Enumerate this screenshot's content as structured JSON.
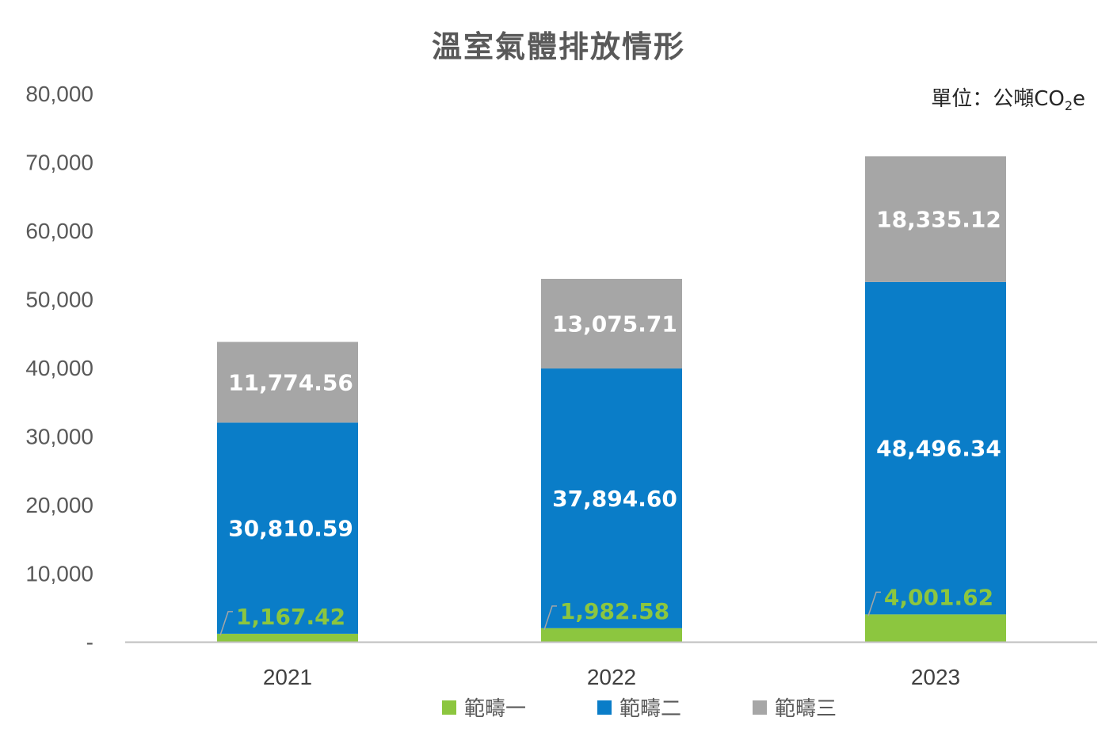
{
  "unit": {
    "prefix": "單位：公噸CO",
    "sub": "2",
    "suffix": "e"
  },
  "colors": {
    "scope1": "#8cc63f",
    "scope2": "#0a7dc8",
    "scope3": "#a6a6a6",
    "axis": "#bfbfbf"
  },
  "chart_data": {
    "type": "bar",
    "stacked": true,
    "title": "溫室氣體排放情形",
    "categories": [
      "2021",
      "2022",
      "2023"
    ],
    "series": [
      {
        "name": "範疇一",
        "values": [
          1167.42,
          1982.58,
          4001.62
        ],
        "labels": [
          "1,167.42",
          "1,982.58",
          "4,001.62"
        ]
      },
      {
        "name": "範疇二",
        "values": [
          30810.59,
          37894.6,
          48496.34
        ],
        "labels": [
          "30,810.59",
          "37,894.60",
          "48,496.34"
        ]
      },
      {
        "name": "範疇三",
        "values": [
          11774.56,
          13075.71,
          18335.12
        ],
        "labels": [
          "11,774.56",
          "13,075.71",
          "18,335.12"
        ]
      }
    ],
    "ylim": [
      0,
      80000
    ],
    "yticks": [
      0,
      10000,
      20000,
      30000,
      40000,
      50000,
      60000,
      70000,
      80000
    ],
    "ytick_labels": [
      "-",
      "10,000",
      "20,000",
      "30,000",
      "40,000",
      "50,000",
      "60,000",
      "70,000",
      "80,000"
    ],
    "grid": false,
    "legend_position": "bottom"
  }
}
